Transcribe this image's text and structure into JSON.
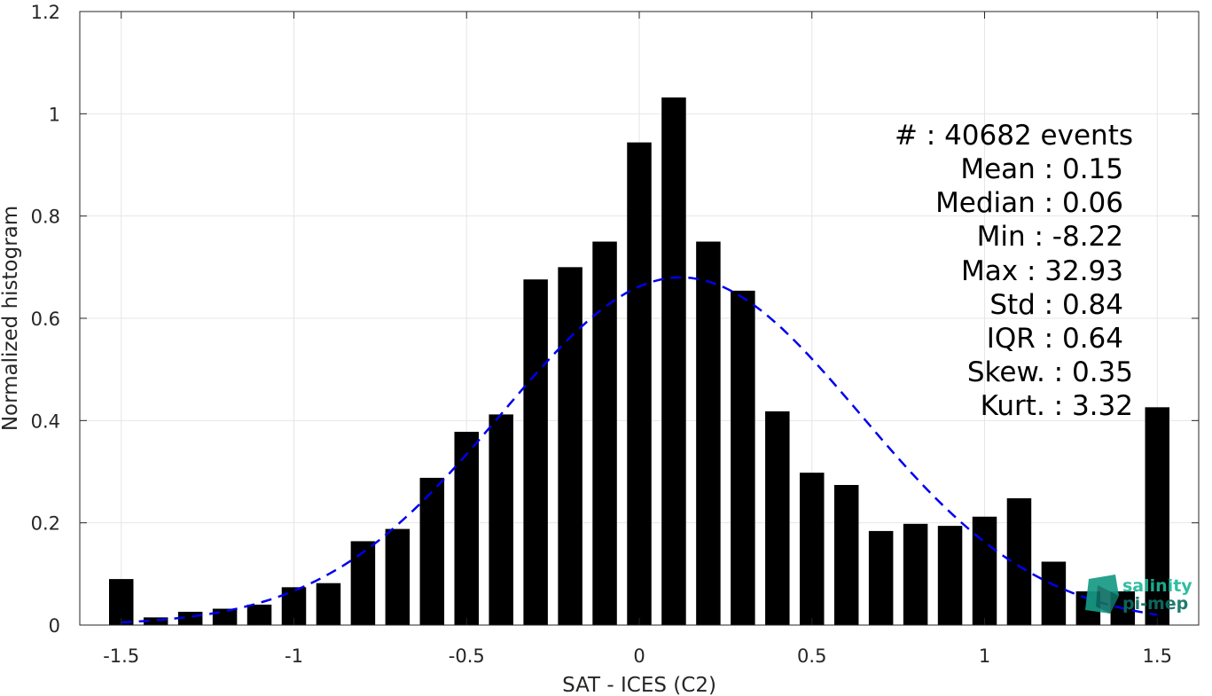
{
  "chart_data": {
    "type": "bar",
    "xlabel": "SAT - ICES (C2)",
    "ylabel": "Normalized histogram",
    "xlim": [
      -1.62,
      1.62
    ],
    "ylim": [
      0,
      1.2
    ],
    "grid": true,
    "x_ticks": [
      -1.5,
      -1,
      -0.5,
      0,
      0.5,
      1,
      1.5
    ],
    "x_tick_labels": [
      "-1.5",
      "-1",
      "-0.5",
      "0",
      "0.5",
      "1",
      "1.5"
    ],
    "y_ticks": [
      0,
      0.2,
      0.4,
      0.6,
      0.8,
      1,
      1.2
    ],
    "y_tick_labels": [
      "0",
      "0.2",
      "0.4",
      "0.6",
      "0.8",
      "1",
      "1.2"
    ],
    "bar_color": "#000000",
    "bars": {
      "x": [
        -1.5,
        -1.4,
        -1.3,
        -1.2,
        -1.1,
        -1.0,
        -0.9,
        -0.8,
        -0.7,
        -0.6,
        -0.5,
        -0.4,
        -0.3,
        -0.2,
        -0.1,
        0.0,
        0.1,
        0.2,
        0.3,
        0.4,
        0.5,
        0.6,
        0.7,
        0.8,
        0.9,
        1.0,
        1.1,
        1.2,
        1.3,
        1.4,
        1.5
      ],
      "values": [
        0.09,
        0.015,
        0.026,
        0.032,
        0.04,
        0.074,
        0.082,
        0.164,
        0.188,
        0.288,
        0.378,
        0.412,
        0.676,
        0.7,
        0.75,
        0.944,
        1.032,
        0.75,
        0.654,
        0.418,
        0.298,
        0.274,
        0.184,
        0.198,
        0.194,
        0.212,
        0.248,
        0.124,
        0.066,
        0.066,
        0.426
      ]
    },
    "fit_curve": {
      "style": "dashed",
      "color": "#0000ee",
      "mean": 0.12,
      "peak": 0.68,
      "sigma": 0.52,
      "x_range": [
        -1.5,
        1.5
      ]
    },
    "stats": [
      "#  : 40682 events",
      "Mean : 0.15",
      "Median : 0.06",
      "Min : -8.22",
      "Max : 32.93",
      "Std : 0.84",
      "IQR : 0.64",
      "Skew. : 0.35",
      "Kurt. : 3.32"
    ]
  },
  "logo": {
    "line1": "salinity",
    "line2": "pi-mep",
    "color1": "#1fb89a",
    "color2": "#0e6f63"
  }
}
